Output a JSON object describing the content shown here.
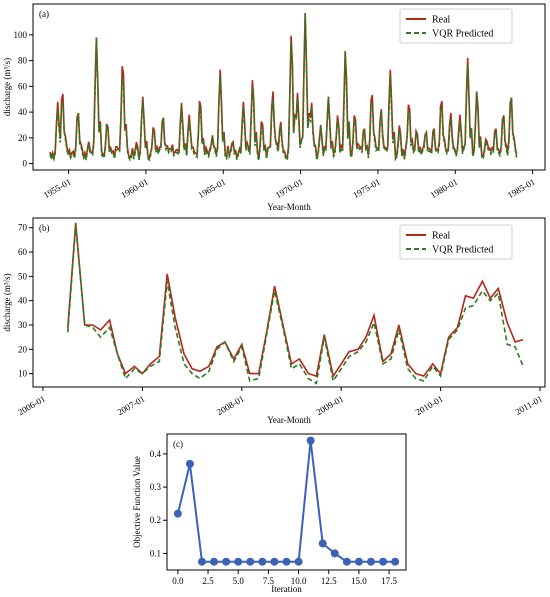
{
  "chart_data": [
    {
      "type": "line",
      "panel_label": "(a)",
      "xlabel": "Year-Month",
      "ylabel": "discharge (m³/s)",
      "ylim": [
        -5,
        124
      ],
      "xlim": [
        1952.7,
        1985.8
      ],
      "yticks": [
        0,
        20,
        40,
        60,
        80,
        100
      ],
      "xticks": [
        {
          "v": 1955.0,
          "label": "1955-01"
        },
        {
          "v": 1960.0,
          "label": "1960-01"
        },
        {
          "v": 1965.0,
          "label": "1965-01"
        },
        {
          "v": 1970.0,
          "label": "1970-01"
        },
        {
          "v": 1975.0,
          "label": "1975-01"
        },
        {
          "v": 1980.0,
          "label": "1980-01"
        },
        {
          "v": 1985.0,
          "label": "1985-01"
        }
      ],
      "legend": {
        "position": "top-right"
      },
      "peaks": [
        [
          1954.3,
          48
        ],
        [
          1954.6,
          58
        ],
        [
          1955.6,
          42
        ],
        [
          1956.3,
          17
        ],
        [
          1956.8,
          98
        ],
        [
          1957.5,
          33
        ],
        [
          1958.1,
          14
        ],
        [
          1958.5,
          81
        ],
        [
          1959.4,
          17
        ],
        [
          1959.8,
          52
        ],
        [
          1960.5,
          30
        ],
        [
          1961.1,
          38
        ],
        [
          1961.7,
          15
        ],
        [
          1962.3,
          47
        ],
        [
          1962.8,
          38
        ],
        [
          1963.5,
          52
        ],
        [
          1964.3,
          22
        ],
        [
          1964.8,
          73
        ],
        [
          1965.6,
          18
        ],
        [
          1966.3,
          48
        ],
        [
          1966.9,
          66
        ],
        [
          1967.5,
          35
        ],
        [
          1968.2,
          57
        ],
        [
          1968.7,
          33
        ],
        [
          1969.4,
          101
        ],
        [
          1969.8,
          55
        ],
        [
          1970.3,
          117
        ],
        [
          1970.7,
          48
        ],
        [
          1971.3,
          30
        ],
        [
          1971.8,
          52
        ],
        [
          1972.4,
          38
        ],
        [
          1972.9,
          88
        ],
        [
          1973.5,
          40
        ],
        [
          1974.1,
          29
        ],
        [
          1974.6,
          57
        ],
        [
          1975.2,
          43
        ],
        [
          1975.8,
          73
        ],
        [
          1976.4,
          30
        ],
        [
          1977.0,
          49
        ],
        [
          1977.5,
          27
        ],
        [
          1978.1,
          26
        ],
        [
          1978.6,
          29
        ],
        [
          1979.1,
          52
        ],
        [
          1979.7,
          40
        ],
        [
          1980.3,
          38
        ],
        [
          1980.8,
          82
        ],
        [
          1981.4,
          57
        ],
        [
          1982.0,
          20
        ],
        [
          1982.6,
          29
        ],
        [
          1983.1,
          40
        ],
        [
          1983.6,
          55
        ]
      ],
      "series": [
        {
          "name": "Real",
          "color": "#b5271d",
          "style": "solid"
        },
        {
          "name": "VQR Predicted",
          "color": "#2e7a1c",
          "style": "dashed"
        }
      ]
    },
    {
      "type": "line",
      "panel_label": "(b)",
      "xlabel": "Year-Month",
      "ylabel": "discharge (m³/s)",
      "ylim": [
        4.5,
        74
      ],
      "xlim": [
        2005.9,
        2011.05
      ],
      "yticks": [
        10,
        20,
        30,
        40,
        50,
        60,
        70
      ],
      "xticks": [
        {
          "v": 2006.0,
          "label": "2006-01"
        },
        {
          "v": 2007.0,
          "label": "2007-01"
        },
        {
          "v": 2008.0,
          "label": "2008-01"
        },
        {
          "v": 2009.0,
          "label": "2009-01"
        },
        {
          "v": 2010.0,
          "label": "2010-01"
        },
        {
          "v": 2011.0,
          "label": "2011-01"
        }
      ],
      "legend": {
        "position": "top-right"
      },
      "x": [
        2006.25,
        2006.33,
        2006.42,
        2006.5,
        2006.58,
        2006.67,
        2006.75,
        2006.83,
        2006.92,
        2007.0,
        2007.08,
        2007.17,
        2007.25,
        2007.33,
        2007.42,
        2007.5,
        2007.58,
        2007.67,
        2007.75,
        2007.83,
        2007.92,
        2008.0,
        2008.08,
        2008.17,
        2008.25,
        2008.33,
        2008.42,
        2008.5,
        2008.58,
        2008.67,
        2008.75,
        2008.83,
        2008.92,
        2009.0,
        2009.08,
        2009.17,
        2009.25,
        2009.33,
        2009.42,
        2009.5,
        2009.58,
        2009.67,
        2009.75,
        2009.83,
        2009.92,
        2010.0,
        2010.08,
        2010.17,
        2010.25,
        2010.33,
        2010.42,
        2010.5,
        2010.58,
        2010.67,
        2010.75,
        2010.83
      ],
      "series": [
        {
          "name": "Real",
          "color": "#b5271d",
          "style": "solid",
          "values": [
            29,
            72,
            30,
            30,
            28,
            32,
            18,
            10,
            13,
            10,
            14,
            17,
            51,
            33,
            18,
            12,
            11,
            13,
            21,
            23,
            16,
            22,
            10,
            10,
            27,
            46,
            29,
            14,
            16,
            10,
            9,
            26,
            9,
            14,
            19,
            20,
            25,
            34,
            15,
            18,
            30,
            14,
            10,
            9,
            14,
            10,
            25,
            29,
            42,
            41,
            48,
            41,
            45,
            31,
            23,
            24
          ]
        },
        {
          "name": "VQR Predicted",
          "color": "#2e7a1c",
          "style": "dashed",
          "values": [
            27,
            71,
            30,
            29,
            25,
            29,
            18,
            8,
            12,
            10,
            13,
            15,
            48,
            29,
            14,
            10,
            8,
            11,
            20,
            23,
            15,
            21,
            7,
            8,
            26,
            44,
            28,
            12,
            14,
            8,
            6,
            25,
            7,
            12,
            17,
            19,
            23,
            31,
            14,
            16,
            28,
            12,
            8,
            7,
            13,
            9,
            24,
            28,
            37,
            38,
            44,
            40,
            43,
            22,
            21,
            13
          ]
        }
      ]
    },
    {
      "type": "line",
      "panel_label": "(c)",
      "xlabel": "Iteration",
      "ylabel": "Objective Function Value",
      "ylim": [
        0.05,
        0.46
      ],
      "xlim": [
        -0.9,
        18.9
      ],
      "yticks": [
        0.1,
        0.2,
        0.3,
        0.4
      ],
      "xticks": [
        0.0,
        2.5,
        5.0,
        7.5,
        10.0,
        12.5,
        15.0,
        17.5
      ],
      "xtick_labels": [
        "0.0",
        "2.5",
        "5.0",
        "7.5",
        "10.0",
        "12.5",
        "15.0",
        "17.5"
      ],
      "x": [
        0,
        1,
        2,
        3,
        4,
        5,
        6,
        7,
        8,
        9,
        10,
        11,
        12,
        13,
        14,
        15,
        16,
        17,
        18
      ],
      "series": [
        {
          "color": "#3a63b8",
          "marker": "circle",
          "values": [
            0.22,
            0.37,
            0.075,
            0.075,
            0.075,
            0.075,
            0.075,
            0.075,
            0.075,
            0.075,
            0.075,
            0.44,
            0.13,
            0.1,
            0.075,
            0.075,
            0.075,
            0.075,
            0.075
          ]
        }
      ]
    }
  ]
}
